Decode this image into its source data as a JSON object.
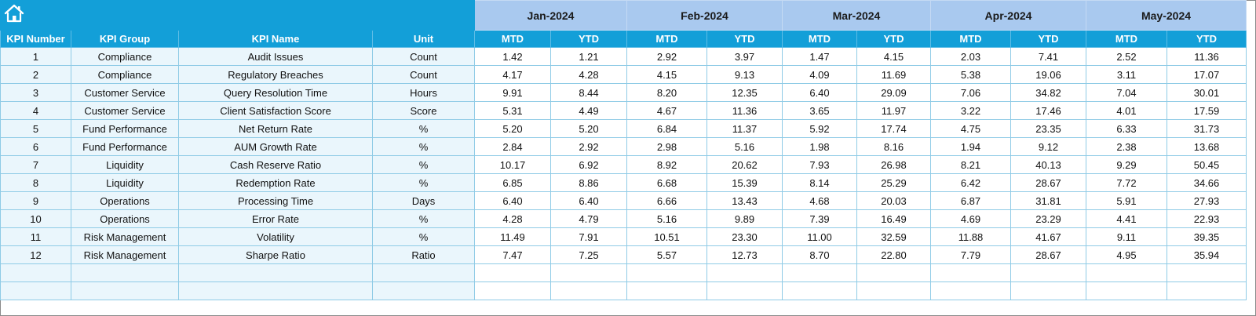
{
  "header": {
    "months": [
      "Jan-2024",
      "Feb-2024",
      "Mar-2024",
      "Apr-2024",
      "May-2024"
    ],
    "columns": [
      "KPI Number",
      "KPI Group",
      "KPI Name",
      "Unit"
    ],
    "periods": [
      "MTD",
      "YTD"
    ]
  },
  "table": {
    "rows": [
      [
        "1",
        "Compliance",
        "Audit Issues",
        "Count",
        "1.42",
        "1.21",
        "2.92",
        "3.97",
        "1.47",
        "4.15",
        "2.03",
        "7.41",
        "2.52",
        "11.36"
      ],
      [
        "2",
        "Compliance",
        "Regulatory Breaches",
        "Count",
        "4.17",
        "4.28",
        "4.15",
        "9.13",
        "4.09",
        "11.69",
        "5.38",
        "19.06",
        "3.11",
        "17.07"
      ],
      [
        "3",
        "Customer Service",
        "Query Resolution Time",
        "Hours",
        "9.91",
        "8.44",
        "8.20",
        "12.35",
        "6.40",
        "29.09",
        "7.06",
        "34.82",
        "7.04",
        "30.01"
      ],
      [
        "4",
        "Customer Service",
        "Client Satisfaction Score",
        "Score",
        "5.31",
        "4.49",
        "4.67",
        "11.36",
        "3.65",
        "11.97",
        "3.22",
        "17.46",
        "4.01",
        "17.59"
      ],
      [
        "5",
        "Fund Performance",
        "Net Return Rate",
        "%",
        "5.20",
        "5.20",
        "6.84",
        "11.37",
        "5.92",
        "17.74",
        "4.75",
        "23.35",
        "6.33",
        "31.73"
      ],
      [
        "6",
        "Fund Performance",
        "AUM Growth Rate",
        "%",
        "2.84",
        "2.92",
        "2.98",
        "5.16",
        "1.98",
        "8.16",
        "1.94",
        "9.12",
        "2.38",
        "13.68"
      ],
      [
        "7",
        "Liquidity",
        "Cash Reserve Ratio",
        "%",
        "10.17",
        "6.92",
        "8.92",
        "20.62",
        "7.93",
        "26.98",
        "8.21",
        "40.13",
        "9.29",
        "50.45"
      ],
      [
        "8",
        "Liquidity",
        "Redemption Rate",
        "%",
        "6.85",
        "8.86",
        "6.68",
        "15.39",
        "8.14",
        "25.29",
        "6.42",
        "28.67",
        "7.72",
        "34.66"
      ],
      [
        "9",
        "Operations",
        "Processing Time",
        "Days",
        "6.40",
        "6.40",
        "6.66",
        "13.43",
        "4.68",
        "20.03",
        "6.87",
        "31.81",
        "5.91",
        "27.93"
      ],
      [
        "10",
        "Operations",
        "Error Rate",
        "%",
        "4.28",
        "4.79",
        "5.16",
        "9.89",
        "7.39",
        "16.49",
        "4.69",
        "23.29",
        "4.41",
        "22.93"
      ],
      [
        "11",
        "Risk Management",
        "Volatility",
        "%",
        "11.49",
        "7.91",
        "10.51",
        "23.30",
        "11.00",
        "32.59",
        "11.88",
        "41.67",
        "9.11",
        "39.35"
      ],
      [
        "12",
        "Risk Management",
        "Sharpe Ratio",
        "Ratio",
        "7.47",
        "7.25",
        "5.57",
        "12.73",
        "8.70",
        "22.80",
        "7.79",
        "28.67",
        "4.95",
        "35.94"
      ]
    ]
  }
}
